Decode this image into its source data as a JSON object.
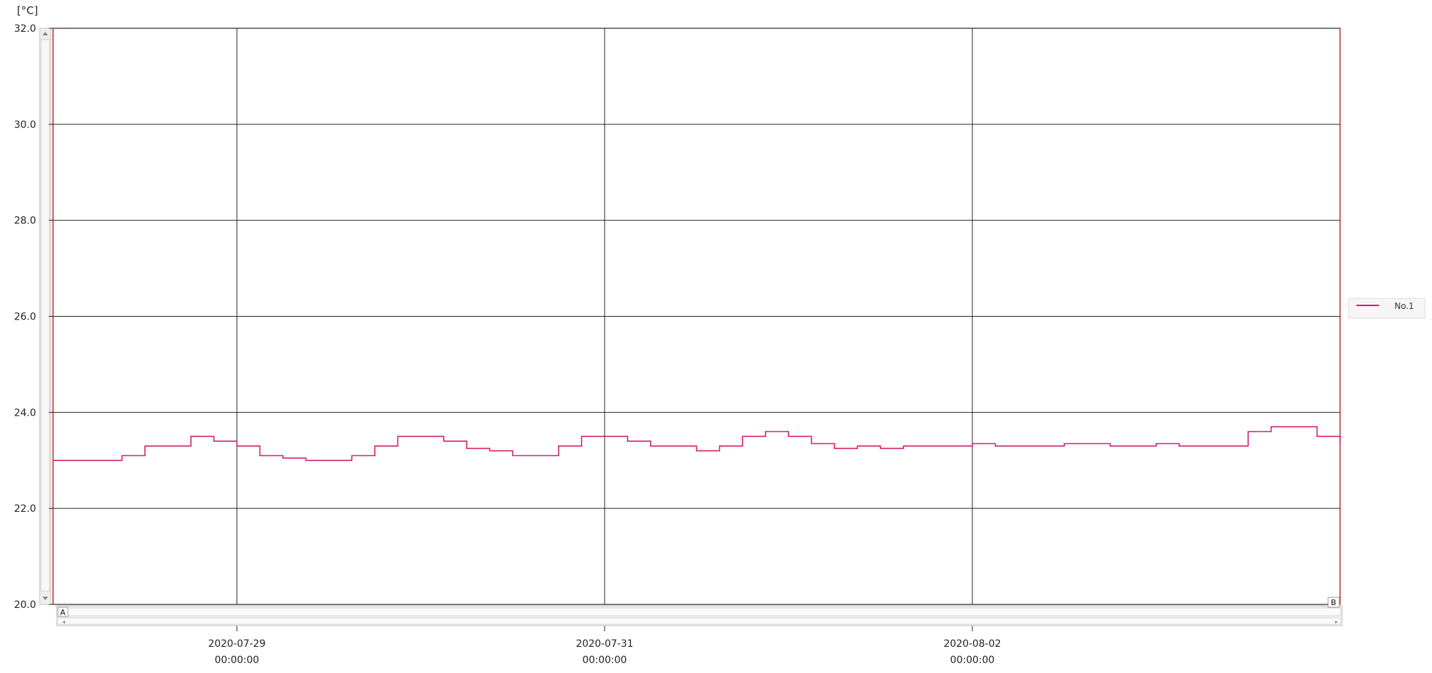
{
  "chart_data": {
    "type": "line",
    "ylabel": "[°C]",
    "ylim": [
      20.0,
      32.0
    ],
    "yticks": [
      "32.0",
      "30.0",
      "28.0",
      "26.0",
      "24.0",
      "22.0",
      "20.0"
    ],
    "xlim": [
      "2020-07-28 00:00",
      "2020-08-03 24:00"
    ],
    "xticks": [
      {
        "date": "2020-07-29",
        "time": "00:00:00"
      },
      {
        "date": "2020-07-31",
        "time": "00:00:00"
      },
      {
        "date": "2020-08-02",
        "time": "00:00:00"
      }
    ],
    "grid": true,
    "legend_position": "right",
    "series": [
      {
        "name": "No.1",
        "color": "#d11f6e",
        "x": [
          "2020-07-28 00:00",
          "2020-07-28 03:00",
          "2020-07-28 06:00",
          "2020-07-28 09:00",
          "2020-07-28 12:00",
          "2020-07-28 15:00",
          "2020-07-28 18:00",
          "2020-07-28 21:00",
          "2020-07-29 00:00",
          "2020-07-29 03:00",
          "2020-07-29 06:00",
          "2020-07-29 09:00",
          "2020-07-29 12:00",
          "2020-07-29 15:00",
          "2020-07-29 18:00",
          "2020-07-29 21:00",
          "2020-07-30 00:00",
          "2020-07-30 03:00",
          "2020-07-30 06:00",
          "2020-07-30 09:00",
          "2020-07-30 12:00",
          "2020-07-30 15:00",
          "2020-07-30 18:00",
          "2020-07-30 21:00",
          "2020-07-31 00:00",
          "2020-07-31 03:00",
          "2020-07-31 06:00",
          "2020-07-31 09:00",
          "2020-07-31 12:00",
          "2020-07-31 15:00",
          "2020-07-31 18:00",
          "2020-07-31 21:00",
          "2020-08-01 00:00",
          "2020-08-01 03:00",
          "2020-08-01 06:00",
          "2020-08-01 09:00",
          "2020-08-01 12:00",
          "2020-08-01 15:00",
          "2020-08-01 18:00",
          "2020-08-01 21:00",
          "2020-08-02 00:00",
          "2020-08-02 03:00",
          "2020-08-02 06:00",
          "2020-08-02 09:00",
          "2020-08-02 12:00",
          "2020-08-02 15:00",
          "2020-08-02 18:00",
          "2020-08-02 21:00",
          "2020-08-03 00:00",
          "2020-08-03 03:00",
          "2020-08-03 06:00",
          "2020-08-03 09:00",
          "2020-08-03 12:00",
          "2020-08-03 15:00",
          "2020-08-03 18:00",
          "2020-08-03 21:00",
          "2020-08-03 24:00"
        ],
        "y": [
          23.0,
          23.0,
          23.0,
          23.1,
          23.3,
          23.3,
          23.5,
          23.4,
          23.3,
          23.1,
          23.05,
          23.0,
          23.0,
          23.1,
          23.3,
          23.5,
          23.5,
          23.4,
          23.25,
          23.2,
          23.1,
          23.1,
          23.3,
          23.5,
          23.5,
          23.4,
          23.3,
          23.3,
          23.2,
          23.3,
          23.5,
          23.6,
          23.5,
          23.35,
          23.25,
          23.3,
          23.25,
          23.3,
          23.3,
          23.3,
          23.35,
          23.3,
          23.3,
          23.3,
          23.35,
          23.35,
          23.3,
          23.3,
          23.35,
          23.3,
          23.3,
          23.3,
          23.6,
          23.7,
          23.7,
          23.5,
          23.4
        ]
      }
    ]
  }
}
